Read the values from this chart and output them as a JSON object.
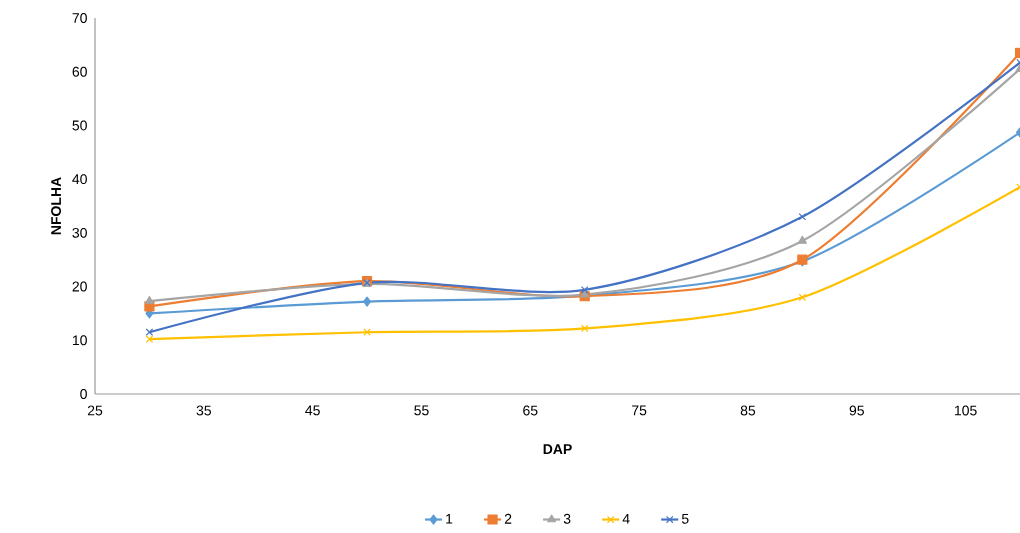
{
  "chart_data": {
    "type": "line",
    "xlabel": "DAP",
    "ylabel": "NFOLHA",
    "x": [
      30,
      50,
      70,
      90,
      110
    ],
    "xlim": [
      25,
      110
    ],
    "xticks": [
      25,
      35,
      45,
      55,
      65,
      75,
      85,
      95,
      105
    ],
    "ylim": [
      0,
      70
    ],
    "yticks": [
      0,
      10,
      20,
      30,
      40,
      50,
      60,
      70
    ],
    "grid": false,
    "legend": "bottom",
    "series": [
      {
        "name": "1",
        "color": "#5b9bd5",
        "marker": "diamond",
        "values": [
          15,
          17.2,
          18.3,
          24.7,
          48.7
        ]
      },
      {
        "name": "2",
        "color": "#ed7d31",
        "marker": "square",
        "values": [
          16.3,
          21,
          18.2,
          25,
          63.5
        ]
      },
      {
        "name": "3",
        "color": "#a5a5a5",
        "marker": "triangle",
        "values": [
          17.3,
          20.5,
          18.5,
          28.5,
          60.5
        ]
      },
      {
        "name": "4",
        "color": "#ffc000",
        "marker": "cross",
        "values": [
          10.2,
          11.5,
          12.2,
          18,
          38.5
        ]
      },
      {
        "name": "5",
        "color": "#4472c4",
        "marker": "cross",
        "values": [
          11.5,
          20.7,
          19.4,
          33,
          61.7
        ]
      }
    ]
  }
}
